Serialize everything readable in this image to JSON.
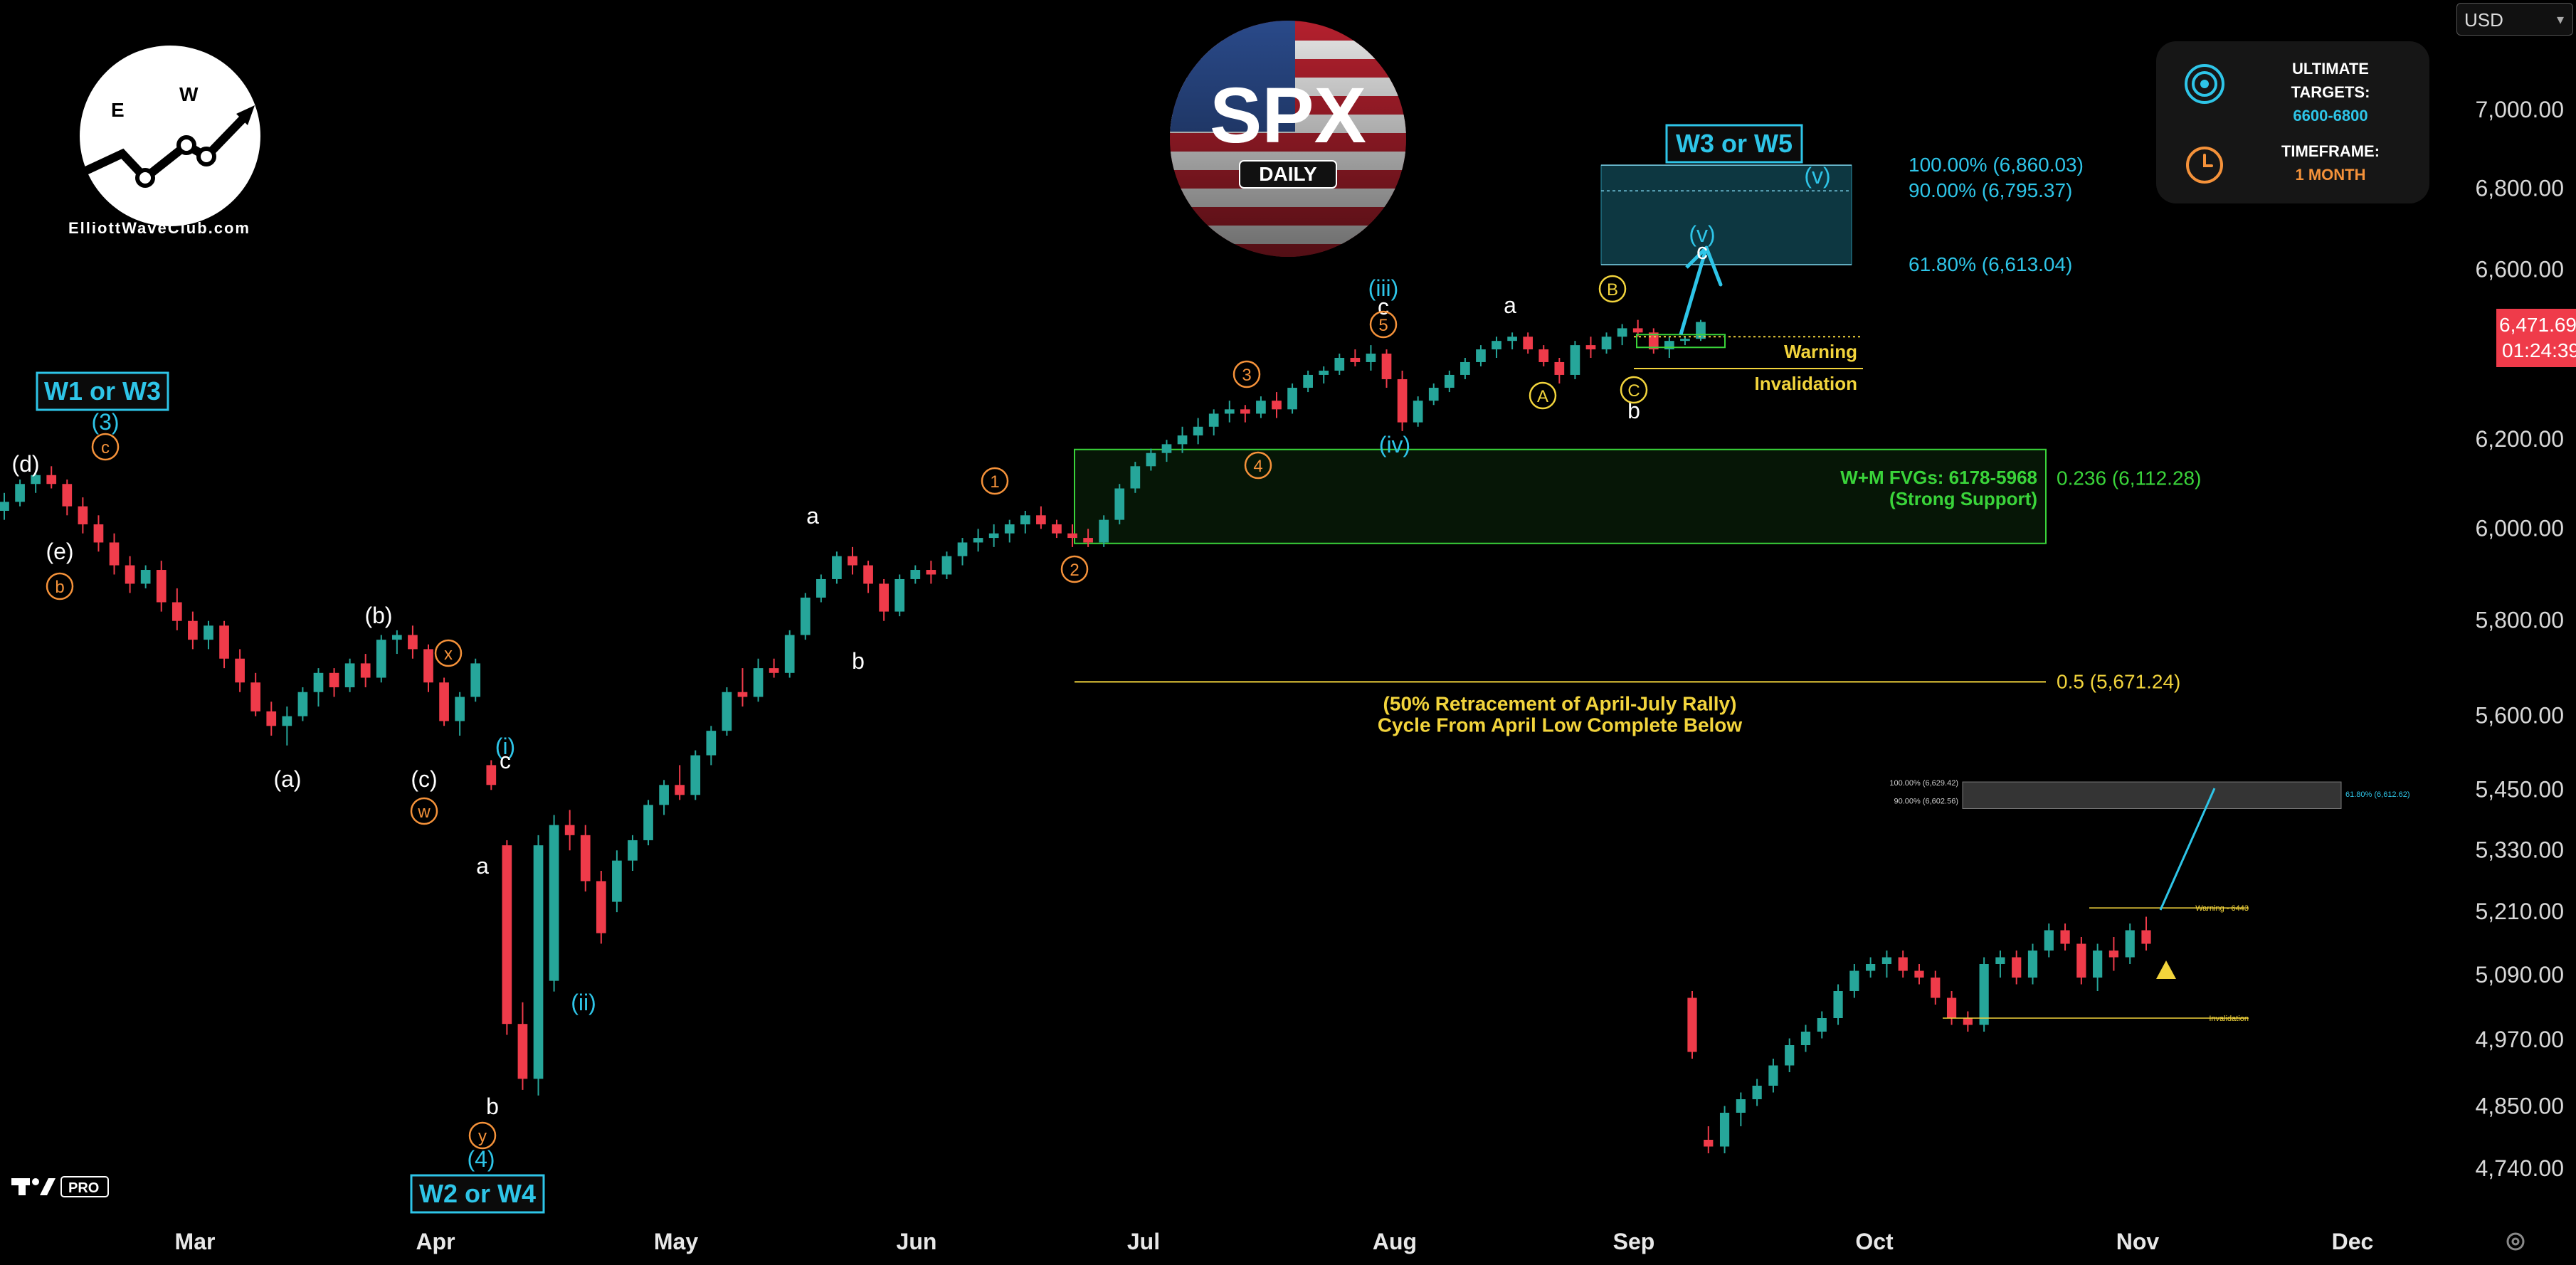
{
  "header": {
    "badge_text": "SPX",
    "badge_subtext": "DAILY",
    "brand_caption": "ElliottWaveClub.com",
    "currency": "USD"
  },
  "info_card": {
    "targets_title": "ULTIMATE\nTARGETS:",
    "targets_value": "6600-6800",
    "timeframe_title": "TIMEFRAME:",
    "timeframe_value": "1 MONTH",
    "target_icon": "target-icon",
    "clock_icon": "clock-icon"
  },
  "price_tag": {
    "price": "6,471.69",
    "countdown": "01:24:39"
  },
  "colors": {
    "up": "#26a69a",
    "down": "#ef3b4a",
    "cyan": "#2ec5e8",
    "orange": "#f5923a",
    "yellow": "#f2d43c",
    "green": "#3ad43a",
    "white": "#ffffff",
    "bg": "#000000"
  },
  "chart_data": [
    {
      "type": "candlestick",
      "title": "SPX DAILY",
      "x_axis": {
        "ticks": [
          "Mar",
          "Apr",
          "May",
          "Jun",
          "Jul",
          "Aug",
          "Sep",
          "Oct",
          "Nov",
          "Dec"
        ]
      },
      "y_axis": {
        "scale": "log",
        "ticks": [
          "7,000.00",
          "6,800.00",
          "6,600.00",
          "6,200.00",
          "6,000.00",
          "5,800.00",
          "5,600.00",
          "5,450.00",
          "5,330.00",
          "5,210.00",
          "5,090.00",
          "4,970.00",
          "4,850.00",
          "4,740.00"
        ],
        "tick_values": [
          7000,
          6800,
          6600,
          6200,
          6000,
          5800,
          5600,
          5450,
          5330,
          5210,
          5090,
          4970,
          4850,
          4740
        ]
      },
      "last_price": 6471.69,
      "series": [
        {
          "ohlc": [
            [
              6040,
              6080,
              6020,
              6060
            ],
            [
              6060,
              6110,
              6050,
              6100
            ],
            [
              6100,
              6130,
              6080,
              6120
            ],
            [
              6120,
              6140,
              6090,
              6100
            ],
            [
              6100,
              6110,
              6030,
              6050
            ],
            [
              6050,
              6070,
              5990,
              6010
            ],
            [
              6010,
              6030,
              5950,
              5970
            ],
            [
              5970,
              5990,
              5900,
              5920
            ],
            [
              5920,
              5940,
              5860,
              5880
            ],
            [
              5880,
              5920,
              5870,
              5910
            ],
            [
              5910,
              5930,
              5820,
              5840
            ],
            [
              5840,
              5870,
              5780,
              5800
            ],
            [
              5800,
              5820,
              5740,
              5760
            ],
            [
              5760,
              5800,
              5740,
              5790
            ],
            [
              5790,
              5800,
              5700,
              5720
            ],
            [
              5720,
              5740,
              5650,
              5670
            ],
            [
              5670,
              5690,
              5600,
              5610
            ],
            [
              5610,
              5630,
              5560,
              5580
            ],
            [
              5580,
              5620,
              5540,
              5600
            ],
            [
              5600,
              5660,
              5590,
              5650
            ],
            [
              5650,
              5700,
              5620,
              5690
            ],
            [
              5690,
              5700,
              5640,
              5660
            ],
            [
              5660,
              5720,
              5650,
              5710
            ],
            [
              5710,
              5730,
              5660,
              5680
            ],
            [
              5680,
              5770,
              5670,
              5760
            ],
            [
              5760,
              5780,
              5730,
              5770
            ],
            [
              5770,
              5790,
              5720,
              5740
            ],
            [
              5740,
              5750,
              5650,
              5670
            ],
            [
              5670,
              5680,
              5580,
              5590
            ],
            [
              5590,
              5650,
              5560,
              5640
            ],
            [
              5640,
              5720,
              5630,
              5710
            ],
            [
              5500,
              5510,
              5450,
              5460
            ],
            [
              5340,
              5350,
              4980,
              5000
            ],
            [
              5000,
              5040,
              4880,
              4900
            ],
            [
              4900,
              5360,
              4870,
              5340
            ],
            [
              5080,
              5400,
              5060,
              5380
            ],
            [
              5380,
              5410,
              5330,
              5360
            ],
            [
              5360,
              5380,
              5250,
              5270
            ],
            [
              5270,
              5290,
              5150,
              5170
            ],
            [
              5230,
              5330,
              5210,
              5310
            ],
            [
              5310,
              5360,
              5290,
              5350
            ],
            [
              5350,
              5430,
              5340,
              5420
            ],
            [
              5420,
              5470,
              5400,
              5460
            ],
            [
              5460,
              5500,
              5430,
              5440
            ],
            [
              5440,
              5530,
              5430,
              5520
            ],
            [
              5520,
              5580,
              5500,
              5570
            ],
            [
              5570,
              5660,
              5560,
              5650
            ],
            [
              5650,
              5700,
              5620,
              5640
            ],
            [
              5640,
              5720,
              5630,
              5700
            ],
            [
              5700,
              5720,
              5680,
              5690
            ],
            [
              5690,
              5780,
              5680,
              5770
            ],
            [
              5770,
              5860,
              5760,
              5850
            ],
            [
              5850,
              5900,
              5840,
              5890
            ],
            [
              5890,
              5950,
              5880,
              5940
            ],
            [
              5940,
              5960,
              5900,
              5920
            ],
            [
              5920,
              5930,
              5860,
              5880
            ],
            [
              5880,
              5890,
              5800,
              5820
            ],
            [
              5820,
              5900,
              5810,
              5890
            ],
            [
              5890,
              5920,
              5880,
              5910
            ],
            [
              5910,
              5930,
              5880,
              5900
            ],
            [
              5900,
              5950,
              5890,
              5940
            ],
            [
              5940,
              5980,
              5920,
              5970
            ],
            [
              5970,
              6000,
              5950,
              5980
            ],
            [
              5980,
              6010,
              5960,
              5990
            ],
            [
              5990,
              6020,
              5970,
              6010
            ],
            [
              6010,
              6040,
              5990,
              6030
            ],
            [
              6030,
              6050,
              6000,
              6010
            ],
            [
              6010,
              6020,
              5980,
              5990
            ],
            [
              5990,
              6010,
              5960,
              5980
            ],
            [
              5980,
              6000,
              5960,
              5970
            ],
            [
              5970,
              6030,
              5960,
              6020
            ],
            [
              6020,
              6100,
              6010,
              6090
            ],
            [
              6090,
              6150,
              6080,
              6140
            ],
            [
              6140,
              6180,
              6130,
              6170
            ],
            [
              6170,
              6200,
              6150,
              6190
            ],
            [
              6190,
              6230,
              6170,
              6210
            ],
            [
              6210,
              6250,
              6190,
              6230
            ],
            [
              6230,
              6270,
              6210,
              6260
            ],
            [
              6260,
              6290,
              6240,
              6270
            ],
            [
              6270,
              6280,
              6240,
              6260
            ],
            [
              6260,
              6300,
              6250,
              6290
            ],
            [
              6290,
              6310,
              6250,
              6270
            ],
            [
              6270,
              6330,
              6260,
              6320
            ],
            [
              6320,
              6360,
              6310,
              6350
            ],
            [
              6350,
              6370,
              6330,
              6360
            ],
            [
              6360,
              6400,
              6350,
              6390
            ],
            [
              6390,
              6410,
              6370,
              6380
            ],
            [
              6380,
              6420,
              6360,
              6400
            ],
            [
              6400,
              6410,
              6320,
              6340
            ],
            [
              6340,
              6360,
              6220,
              6240
            ],
            [
              6240,
              6300,
              6230,
              6290
            ],
            [
              6290,
              6330,
              6280,
              6320
            ],
            [
              6320,
              6360,
              6310,
              6350
            ],
            [
              6350,
              6390,
              6340,
              6380
            ],
            [
              6380,
              6420,
              6370,
              6410
            ],
            [
              6410,
              6440,
              6390,
              6430
            ],
            [
              6430,
              6450,
              6410,
              6440
            ],
            [
              6440,
              6450,
              6400,
              6410
            ],
            [
              6410,
              6420,
              6370,
              6380
            ],
            [
              6380,
              6390,
              6330,
              6350
            ],
            [
              6350,
              6430,
              6340,
              6420
            ],
            [
              6420,
              6440,
              6390,
              6410
            ],
            [
              6410,
              6450,
              6400,
              6440
            ],
            [
              6440,
              6470,
              6420,
              6460
            ],
            [
              6460,
              6480,
              6440,
              6450
            ],
            [
              6450,
              6460,
              6400,
              6410
            ],
            [
              6410,
              6440,
              6390,
              6430
            ],
            [
              6430,
              6440,
              6420,
              6435
            ],
            [
              6435,
              6480,
              6430,
              6475
            ]
          ]
        }
      ],
      "levels": [
        {
          "label": "100.00% (6,860.03)",
          "value": 6860.03
        },
        {
          "label": "90.00% (6,795.37)",
          "value": 6795.37
        },
        {
          "label": "61.80% (6,613.04)",
          "value": 6613.04
        },
        {
          "label": "0.236 (6,112.28)",
          "value": 6112.28
        },
        {
          "label": "0.5 (5,671.24)",
          "value": 5671.24
        }
      ],
      "zones": [
        {
          "label": "W+M FVGs: 6178-5968",
          "sublabel": "(Strong Support)",
          "from": 5968,
          "to": 6178
        },
        {
          "label": "W3 or W5",
          "from": 6613.04,
          "to": 6860.03
        }
      ],
      "annotations": {
        "boxes": [
          "W1 or W3",
          "W2 or W4",
          "W3 or W5"
        ],
        "notes": [
          "(50% Retracement of April-July Rally)",
          "Cycle From April Low Complete Below",
          "Warning",
          "Invalidation"
        ],
        "wave_labels": [
          "(d)",
          "(e)",
          "(3)",
          "(a)",
          "(b)",
          "(c)",
          "(i)",
          "(ii)",
          "(iii)",
          "(iv)",
          "(v)",
          "a",
          "b",
          "c"
        ],
        "circled": [
          "c",
          "b",
          "x",
          "w",
          "y",
          "1",
          "2",
          "3",
          "4",
          "5",
          "A",
          "B",
          "C"
        ]
      }
    },
    {
      "type": "candlestick",
      "inset": true,
      "series": [
        {
          "ohlc": [
            [
              6310,
              6320,
              6220,
              6230
            ],
            [
              6100,
              6120,
              6080,
              6090
            ],
            [
              6090,
              6150,
              6080,
              6140
            ],
            [
              6140,
              6170,
              6120,
              6160
            ],
            [
              6160,
              6190,
              6150,
              6180
            ],
            [
              6180,
              6220,
              6170,
              6210
            ],
            [
              6210,
              6250,
              6200,
              6240
            ],
            [
              6240,
              6270,
              6230,
              6260
            ],
            [
              6260,
              6290,
              6250,
              6280
            ],
            [
              6280,
              6330,
              6270,
              6320
            ],
            [
              6320,
              6360,
              6310,
              6350
            ],
            [
              6350,
              6370,
              6340,
              6360
            ],
            [
              6360,
              6380,
              6340,
              6370
            ],
            [
              6370,
              6380,
              6340,
              6350
            ],
            [
              6350,
              6360,
              6330,
              6340
            ],
            [
              6340,
              6350,
              6300,
              6310
            ],
            [
              6310,
              6320,
              6270,
              6280
            ],
            [
              6280,
              6290,
              6260,
              6270
            ],
            [
              6270,
              6370,
              6260,
              6360
            ],
            [
              6360,
              6380,
              6340,
              6370
            ],
            [
              6370,
              6380,
              6330,
              6340
            ],
            [
              6340,
              6390,
              6330,
              6380
            ],
            [
              6380,
              6420,
              6370,
              6410
            ],
            [
              6410,
              6420,
              6380,
              6390
            ],
            [
              6390,
              6400,
              6330,
              6340
            ],
            [
              6340,
              6390,
              6320,
              6380
            ],
            [
              6380,
              6400,
              6350,
              6370
            ],
            [
              6370,
              6420,
              6360,
              6410
            ],
            [
              6410,
              6430,
              6380,
              6390
            ]
          ]
        }
      ],
      "levels": [
        {
          "label": "100.00% (6,629.42)",
          "value": 6629.42
        },
        {
          "label": "90.00% (6,602.56)",
          "value": 6602.56
        },
        {
          "label": "61.80% (6,612.62)",
          "value": 6612.62
        }
      ],
      "annotations": {
        "notes": [
          "Warning - 6443",
          "Invalidation"
        ]
      }
    }
  ]
}
